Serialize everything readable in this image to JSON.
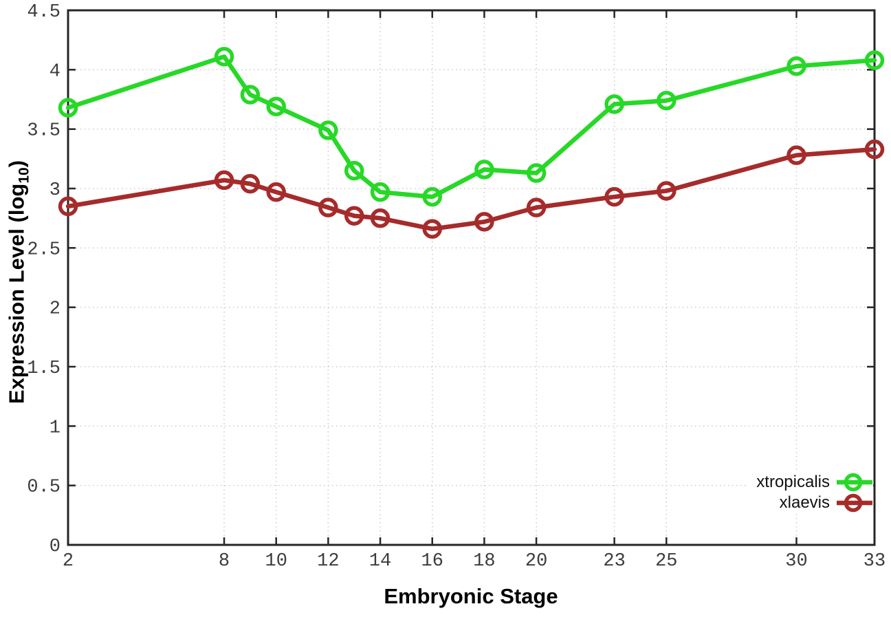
{
  "chart_data": {
    "type": "line",
    "title": "",
    "xlabel": "Embryonic Stage",
    "ylabel": "Expression Level (log10)",
    "ylabel_parts": {
      "pre": "Expression Level (log",
      "sub": "10",
      "post": ")"
    },
    "x": [
      2,
      8,
      9,
      10,
      12,
      13,
      14,
      16,
      18,
      20,
      23,
      25,
      30,
      33
    ],
    "series": [
      {
        "name": "xtropicalis",
        "color": "#27d827",
        "values": [
          3.68,
          4.11,
          3.79,
          3.69,
          3.49,
          3.15,
          2.97,
          2.93,
          3.16,
          3.13,
          3.71,
          3.74,
          4.03,
          4.08
        ]
      },
      {
        "name": "xlaevis",
        "color": "#a62b2b",
        "values": [
          2.85,
          3.07,
          3.04,
          2.97,
          2.84,
          2.77,
          2.75,
          2.66,
          2.72,
          2.84,
          2.93,
          2.98,
          3.28,
          3.33
        ]
      }
    ],
    "xticks": [
      2,
      8,
      10,
      12,
      14,
      16,
      18,
      20,
      23,
      25,
      30,
      33
    ],
    "xtick_labels": [
      "2",
      "8",
      "10",
      "12",
      "14",
      "16",
      "18",
      "20",
      "23",
      "25",
      "30",
      "33"
    ],
    "yticks": [
      0,
      0.5,
      1,
      1.5,
      2,
      2.5,
      3,
      3.5,
      4,
      4.5
    ],
    "ytick_labels": [
      "0",
      "0.5",
      "1",
      "1.5",
      "2",
      "2.5",
      "3",
      "3.5",
      "4",
      "4.5"
    ],
    "xlim": [
      2,
      33
    ],
    "ylim": [
      0,
      4.5
    ],
    "grid": true,
    "legend_position": "bottom-right",
    "colors": {
      "border": "#262626",
      "grid": "#c9c9c9",
      "tick_label": "#3c3c3c",
      "background": "#ffffff"
    }
  }
}
